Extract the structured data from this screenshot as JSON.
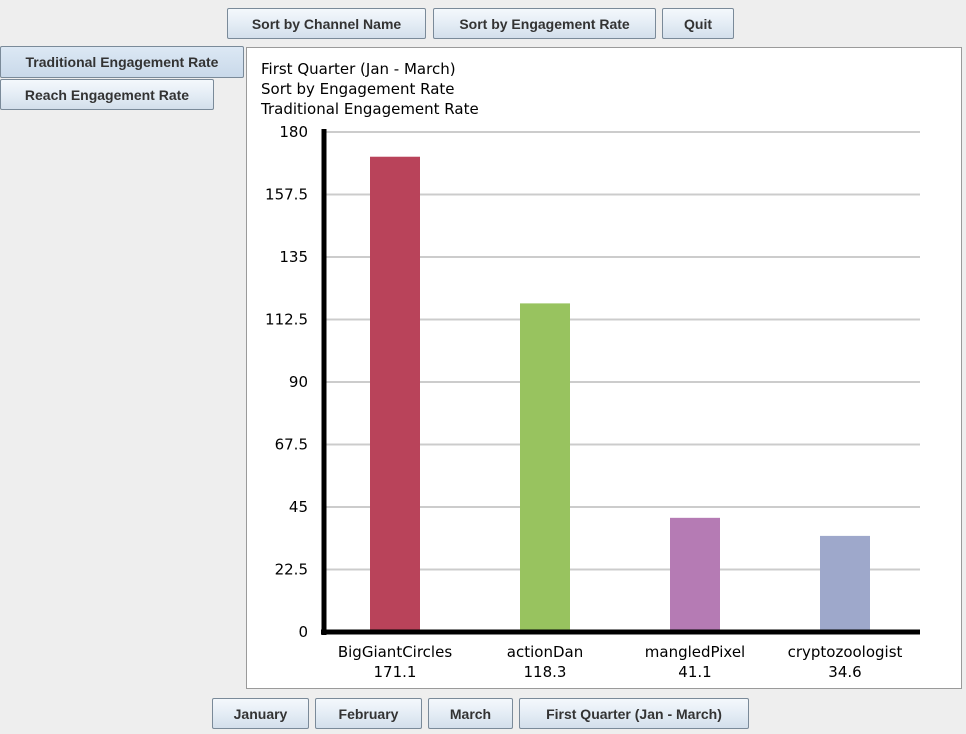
{
  "toolbar": {
    "sort_by_name": "Sort by Channel Name",
    "sort_by_rate": "Sort by Engagement Rate",
    "quit": "Quit"
  },
  "sidebar": {
    "traditional": "Traditional Engagement Rate",
    "reach": "Reach Engagement Rate"
  },
  "bottom": {
    "january": "January",
    "february": "February",
    "march": "March",
    "quarter": "First Quarter (Jan - March)"
  },
  "chart_data": {
    "type": "bar",
    "title_lines": [
      "First Quarter (Jan - March)",
      "Sort by Engagement Rate",
      "Traditional Engagement Rate"
    ],
    "categories": [
      "BigGiantCircles",
      "actionDan",
      "mangledPixel",
      "cryptozoologist"
    ],
    "values": [
      171.1,
      118.3,
      41.1,
      34.6
    ],
    "value_labels": [
      "171.1",
      "118.3",
      "41.1",
      "34.6"
    ],
    "colors": [
      "#b9435a",
      "#98c35f",
      "#b57bb4",
      "#9ea8cb"
    ],
    "ylim": [
      0,
      180
    ],
    "yticks": [
      0,
      22.5,
      45,
      67.5,
      90,
      112.5,
      135,
      157.5,
      180
    ],
    "ytick_labels": [
      "0",
      "22.5",
      "45",
      "67.5",
      "90",
      "112.5",
      "135",
      "157.5",
      "180"
    ],
    "grid": true,
    "xlabel": "",
    "ylabel": ""
  }
}
